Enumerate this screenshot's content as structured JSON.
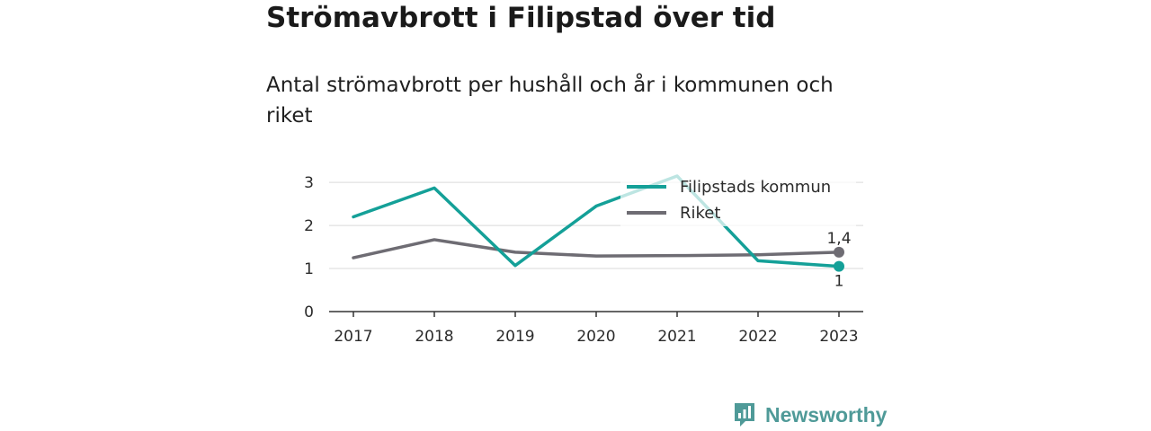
{
  "title": "Strömavbrott i Filipstad över tid",
  "subtitle": "Antal strömavbrott per hushåll och år i kommunen och riket",
  "brand": {
    "name": "Newsworthy",
    "icon": "newsworthy-logo-icon",
    "color": "#4f9a98"
  },
  "chart_data": {
    "type": "line",
    "x": [
      "2017",
      "2018",
      "2019",
      "2020",
      "2021",
      "2022",
      "2023"
    ],
    "ylim": [
      0,
      3.4
    ],
    "yticks": [
      "0",
      "1",
      "2",
      "3"
    ],
    "grid": true,
    "legend": "top-right",
    "series": [
      {
        "name": "Filipstads kommun",
        "color": "#14a098",
        "values": [
          2.2,
          2.87,
          1.07,
          2.45,
          3.15,
          1.18,
          1.05
        ],
        "end_label": "1"
      },
      {
        "name": "Riket",
        "color": "#6e6c73",
        "values": [
          1.25,
          1.67,
          1.38,
          1.29,
          1.3,
          1.32,
          1.38
        ],
        "end_label": "1,4"
      }
    ]
  }
}
